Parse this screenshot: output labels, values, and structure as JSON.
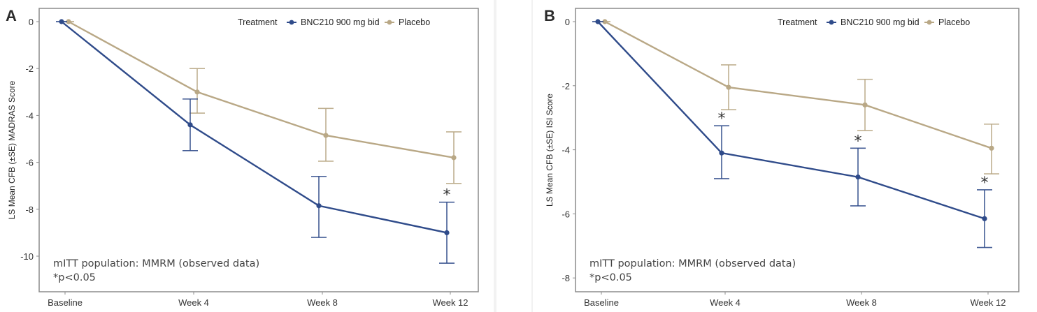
{
  "chart_data": [
    {
      "type": "line",
      "panel": "A",
      "title": "",
      "xlabel": "",
      "ylabel": "LS Mean CFB (±SE) MADRAS Score",
      "categories": [
        "Baseline",
        "Week 4",
        "Week 8",
        "Week 12"
      ],
      "ylim": [
        -11.5,
        0.5
      ],
      "yticks": [
        0,
        -2,
        -4,
        -6,
        -8,
        -10
      ],
      "ytick_labels": [
        "0",
        "-2",
        "-4",
        "-6",
        "-8",
        "-10"
      ],
      "grid": false,
      "legend": {
        "title": "Treatment",
        "placement": "top-right",
        "entries": [
          "BNC210 900 mg bid",
          "Placebo"
        ]
      },
      "series": [
        {
          "name": "BNC210 900 mg bid",
          "color": "#2f4b8a",
          "values": [
            0,
            -4.4,
            -7.85,
            -9.0
          ],
          "se_lower": [
            0,
            -5.5,
            -9.2,
            -10.3
          ],
          "se_upper": [
            0,
            -3.3,
            -6.6,
            -7.7
          ],
          "significant": [
            false,
            false,
            false,
            true
          ]
        },
        {
          "name": "Placebo",
          "color": "#b9a886",
          "values": [
            0,
            -3.0,
            -4.85,
            -5.8
          ],
          "se_lower": [
            0,
            -3.9,
            -5.95,
            -6.9
          ],
          "se_upper": [
            0,
            -2.0,
            -3.7,
            -4.7
          ],
          "significant": [
            false,
            false,
            false,
            false
          ]
        }
      ],
      "annotations": [
        "mITT population: MMRM (observed data)",
        "*p<0.05"
      ],
      "significance_marker": "*"
    },
    {
      "type": "line",
      "panel": "B",
      "title": "",
      "xlabel": "",
      "ylabel": "LS Mean CFB (±SE) ISI Score",
      "categories": [
        "Baseline",
        "Week 4",
        "Week 8",
        "Week 12"
      ],
      "ylim": [
        -8.4,
        0.4
      ],
      "yticks": [
        0,
        -2,
        -4,
        -6,
        -8
      ],
      "ytick_labels": [
        "0",
        "-2",
        "-4",
        "-6",
        "-8"
      ],
      "grid": false,
      "legend": {
        "title": "Treatment",
        "placement": "top-right",
        "entries": [
          "BNC210 900 mg bid",
          "Placebo"
        ]
      },
      "series": [
        {
          "name": "BNC210 900 mg bid",
          "color": "#2f4b8a",
          "values": [
            0,
            -4.1,
            -4.85,
            -6.15
          ],
          "se_lower": [
            0,
            -4.9,
            -5.75,
            -7.05
          ],
          "se_upper": [
            0,
            -3.25,
            -3.95,
            -5.25
          ],
          "significant": [
            false,
            true,
            true,
            true
          ]
        },
        {
          "name": "Placebo",
          "color": "#b9a886",
          "values": [
            0,
            -2.05,
            -2.6,
            -3.95
          ],
          "se_lower": [
            0,
            -2.75,
            -3.4,
            -4.75
          ],
          "se_upper": [
            0,
            -1.35,
            -1.8,
            -3.2
          ],
          "significant": [
            false,
            false,
            false,
            false
          ]
        }
      ],
      "annotations": [
        "mITT population: MMRM (observed data)",
        "*p<0.05"
      ],
      "significance_marker": "*"
    }
  ]
}
